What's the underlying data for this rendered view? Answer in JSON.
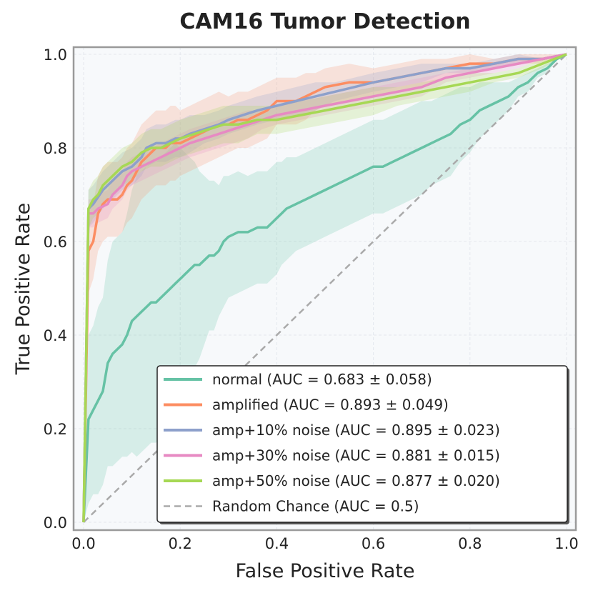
{
  "chart_data": {
    "type": "line",
    "title": "CAM16 Tumor Detection",
    "xlabel": "False Positive Rate",
    "ylabel": "True Positive Rate",
    "xlim": [
      0.0,
      1.0
    ],
    "ylim": [
      0.0,
      1.0
    ],
    "grid": true,
    "legend_position": "lower-right",
    "x_ticks": [
      "0.0",
      "0.2",
      "0.4",
      "0.6",
      "0.8",
      "1.0"
    ],
    "y_ticks": [
      "0.0",
      "0.2",
      "0.4",
      "0.6",
      "0.8",
      "1.0"
    ],
    "series": [
      {
        "name": "normal",
        "label": "normal (AUC = 0.683 ± 0.058)",
        "color": "#66c2a5",
        "x": [
          0.0,
          0.01,
          0.02,
          0.03,
          0.04,
          0.05,
          0.06,
          0.08,
          0.09,
          0.1,
          0.11,
          0.12,
          0.13,
          0.14,
          0.15,
          0.16,
          0.17,
          0.18,
          0.19,
          0.2,
          0.21,
          0.22,
          0.23,
          0.24,
          0.25,
          0.26,
          0.27,
          0.28,
          0.29,
          0.3,
          0.32,
          0.34,
          0.36,
          0.38,
          0.4,
          0.41,
          0.42,
          0.44,
          0.46,
          0.48,
          0.5,
          0.52,
          0.54,
          0.56,
          0.58,
          0.6,
          0.62,
          0.64,
          0.66,
          0.68,
          0.7,
          0.72,
          0.74,
          0.76,
          0.78,
          0.8,
          0.82,
          0.84,
          0.86,
          0.88,
          0.9,
          0.92,
          0.94,
          0.96,
          0.98,
          1.0
        ],
        "y": [
          0.0,
          0.22,
          0.24,
          0.26,
          0.28,
          0.34,
          0.36,
          0.38,
          0.4,
          0.43,
          0.44,
          0.45,
          0.46,
          0.47,
          0.47,
          0.48,
          0.49,
          0.5,
          0.51,
          0.52,
          0.53,
          0.54,
          0.55,
          0.55,
          0.56,
          0.57,
          0.57,
          0.58,
          0.6,
          0.61,
          0.62,
          0.62,
          0.63,
          0.63,
          0.65,
          0.66,
          0.67,
          0.68,
          0.69,
          0.7,
          0.71,
          0.72,
          0.73,
          0.74,
          0.75,
          0.76,
          0.76,
          0.77,
          0.78,
          0.79,
          0.8,
          0.81,
          0.82,
          0.83,
          0.85,
          0.86,
          0.88,
          0.89,
          0.9,
          0.91,
          0.93,
          0.94,
          0.96,
          0.97,
          0.99,
          1.0
        ],
        "band": [
          0.0,
          0.18,
          0.18,
          0.2,
          0.2,
          0.22,
          0.24,
          0.24,
          0.26,
          0.28,
          0.3,
          0.3,
          0.3,
          0.3,
          0.3,
          0.3,
          0.3,
          0.3,
          0.3,
          0.28,
          0.26,
          0.24,
          0.22,
          0.2,
          0.18,
          0.16,
          0.16,
          0.14,
          0.14,
          0.13,
          0.13,
          0.12,
          0.12,
          0.12,
          0.12,
          0.11,
          0.11,
          0.1,
          0.1,
          0.1,
          0.1,
          0.1,
          0.1,
          0.1,
          0.1,
          0.1,
          0.1,
          0.1,
          0.1,
          0.1,
          0.1,
          0.09,
          0.09,
          0.09,
          0.08,
          0.07,
          0.06,
          0.05,
          0.04,
          0.03,
          0.02,
          0.02,
          0.01,
          0.01,
          0.0,
          0.0
        ]
      },
      {
        "name": "amplified",
        "label": "amplified (AUC = 0.893 ± 0.049)",
        "color": "#fc8d62",
        "x": [
          0.0,
          0.01,
          0.02,
          0.03,
          0.04,
          0.05,
          0.06,
          0.07,
          0.08,
          0.09,
          0.1,
          0.11,
          0.12,
          0.13,
          0.14,
          0.15,
          0.16,
          0.17,
          0.18,
          0.19,
          0.2,
          0.22,
          0.24,
          0.26,
          0.28,
          0.3,
          0.32,
          0.34,
          0.36,
          0.38,
          0.4,
          0.42,
          0.44,
          0.46,
          0.48,
          0.5,
          0.55,
          0.6,
          0.65,
          0.7,
          0.75,
          0.8,
          0.85,
          0.9,
          0.95,
          1.0
        ],
        "y": [
          0.0,
          0.58,
          0.6,
          0.66,
          0.68,
          0.69,
          0.69,
          0.69,
          0.7,
          0.72,
          0.73,
          0.75,
          0.77,
          0.78,
          0.79,
          0.8,
          0.8,
          0.8,
          0.81,
          0.81,
          0.81,
          0.82,
          0.83,
          0.84,
          0.85,
          0.85,
          0.86,
          0.86,
          0.87,
          0.88,
          0.9,
          0.9,
          0.9,
          0.91,
          0.92,
          0.93,
          0.94,
          0.94,
          0.95,
          0.96,
          0.97,
          0.98,
          0.98,
          0.99,
          0.99,
          1.0
        ],
        "band": [
          0.0,
          0.09,
          0.08,
          0.08,
          0.08,
          0.08,
          0.08,
          0.08,
          0.08,
          0.08,
          0.08,
          0.08,
          0.08,
          0.08,
          0.08,
          0.08,
          0.08,
          0.08,
          0.08,
          0.08,
          0.07,
          0.07,
          0.07,
          0.07,
          0.07,
          0.06,
          0.06,
          0.06,
          0.06,
          0.06,
          0.05,
          0.05,
          0.05,
          0.05,
          0.04,
          0.04,
          0.04,
          0.03,
          0.03,
          0.03,
          0.02,
          0.02,
          0.01,
          0.01,
          0.01,
          0.0
        ]
      },
      {
        "name": "amp+10% noise",
        "label": "amp+10% noise (AUC = 0.895 ± 0.023)",
        "color": "#8da0cb",
        "x": [
          0.0,
          0.01,
          0.02,
          0.04,
          0.05,
          0.07,
          0.08,
          0.1,
          0.12,
          0.13,
          0.15,
          0.17,
          0.19,
          0.2,
          0.22,
          0.25,
          0.28,
          0.3,
          0.33,
          0.36,
          0.4,
          0.44,
          0.48,
          0.52,
          0.56,
          0.6,
          0.65,
          0.7,
          0.75,
          0.8,
          0.85,
          0.9,
          0.95,
          1.0
        ],
        "y": [
          0.0,
          0.67,
          0.68,
          0.71,
          0.72,
          0.74,
          0.75,
          0.76,
          0.78,
          0.8,
          0.81,
          0.81,
          0.82,
          0.82,
          0.83,
          0.84,
          0.85,
          0.86,
          0.87,
          0.88,
          0.89,
          0.9,
          0.91,
          0.92,
          0.93,
          0.94,
          0.95,
          0.96,
          0.97,
          0.97,
          0.98,
          0.99,
          0.99,
          1.0
        ],
        "band": [
          0.0,
          0.04,
          0.04,
          0.04,
          0.04,
          0.04,
          0.04,
          0.04,
          0.04,
          0.04,
          0.04,
          0.04,
          0.04,
          0.04,
          0.04,
          0.03,
          0.03,
          0.03,
          0.03,
          0.03,
          0.03,
          0.03,
          0.03,
          0.02,
          0.02,
          0.02,
          0.02,
          0.02,
          0.01,
          0.01,
          0.01,
          0.01,
          0.0,
          0.0
        ]
      },
      {
        "name": "amp+30% noise",
        "label": "amp+30% noise (AUC = 0.881 ± 0.015)",
        "color": "#e78ac3",
        "x": [
          0.0,
          0.01,
          0.02,
          0.03,
          0.05,
          0.06,
          0.08,
          0.09,
          0.1,
          0.12,
          0.14,
          0.16,
          0.18,
          0.2,
          0.22,
          0.25,
          0.28,
          0.31,
          0.34,
          0.37,
          0.4,
          0.45,
          0.5,
          0.55,
          0.6,
          0.65,
          0.7,
          0.75,
          0.8,
          0.85,
          0.9,
          0.95,
          1.0
        ],
        "y": [
          0.0,
          0.66,
          0.66,
          0.67,
          0.68,
          0.7,
          0.72,
          0.74,
          0.75,
          0.76,
          0.77,
          0.78,
          0.79,
          0.8,
          0.81,
          0.82,
          0.83,
          0.84,
          0.85,
          0.86,
          0.87,
          0.88,
          0.89,
          0.9,
          0.91,
          0.92,
          0.93,
          0.95,
          0.96,
          0.97,
          0.98,
          0.99,
          1.0
        ],
        "band": [
          0.0,
          0.03,
          0.03,
          0.03,
          0.03,
          0.03,
          0.03,
          0.03,
          0.03,
          0.03,
          0.03,
          0.03,
          0.03,
          0.03,
          0.03,
          0.03,
          0.03,
          0.03,
          0.03,
          0.02,
          0.02,
          0.02,
          0.02,
          0.02,
          0.02,
          0.02,
          0.02,
          0.01,
          0.01,
          0.01,
          0.01,
          0.0,
          0.0
        ]
      },
      {
        "name": "amp+50% noise",
        "label": "amp+50% noise (AUC = 0.877 ± 0.020)",
        "color": "#a6d854",
        "x": [
          0.0,
          0.01,
          0.02,
          0.03,
          0.04,
          0.05,
          0.06,
          0.08,
          0.1,
          0.12,
          0.14,
          0.16,
          0.18,
          0.2,
          0.23,
          0.26,
          0.29,
          0.32,
          0.36,
          0.4,
          0.45,
          0.5,
          0.55,
          0.6,
          0.65,
          0.7,
          0.75,
          0.8,
          0.85,
          0.9,
          0.95,
          1.0
        ],
        "y": [
          0.0,
          0.67,
          0.69,
          0.7,
          0.72,
          0.73,
          0.74,
          0.76,
          0.77,
          0.79,
          0.8,
          0.8,
          0.81,
          0.82,
          0.83,
          0.84,
          0.85,
          0.85,
          0.86,
          0.86,
          0.87,
          0.88,
          0.89,
          0.9,
          0.91,
          0.92,
          0.93,
          0.94,
          0.95,
          0.96,
          0.98,
          1.0
        ],
        "band": [
          0.0,
          0.04,
          0.04,
          0.04,
          0.04,
          0.04,
          0.04,
          0.04,
          0.04,
          0.04,
          0.04,
          0.04,
          0.04,
          0.04,
          0.04,
          0.04,
          0.04,
          0.04,
          0.03,
          0.03,
          0.03,
          0.03,
          0.03,
          0.03,
          0.02,
          0.02,
          0.02,
          0.02,
          0.01,
          0.01,
          0.01,
          0.0
        ]
      }
    ],
    "reference_line": {
      "name": "Random Chance",
      "label": "Random Chance (AUC = 0.5)",
      "color": "#aaaaaa",
      "x": [
        0.0,
        1.0
      ],
      "y": [
        0.0,
        1.0
      ]
    }
  }
}
